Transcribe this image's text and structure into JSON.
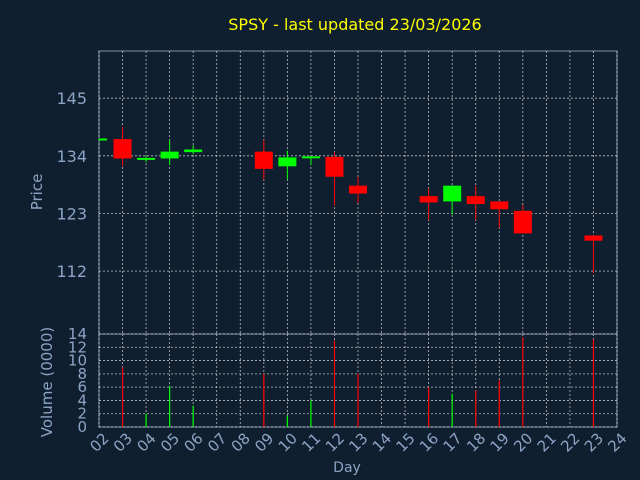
{
  "chart_data": [
    {
      "type": "candlestick",
      "title": "SPSY - last updated 23/03/2026",
      "ylabel": "Price",
      "ylim": [
        100,
        154
      ],
      "yticks": [
        112,
        123,
        134,
        145
      ],
      "grid": true,
      "colors": {
        "background": "#0f1f30",
        "title": "#ffff00",
        "axis_text": "#8ca4c4",
        "up": "#00ff00",
        "down": "#ff0000",
        "grid": "#ffffff"
      },
      "x": [
        "02",
        "03",
        "04",
        "05",
        "06",
        "07",
        "08",
        "09",
        "10",
        "11",
        "12",
        "13",
        "14",
        "15",
        "16",
        "17",
        "18",
        "19",
        "20",
        "21",
        "22",
        "23",
        "24"
      ],
      "candles": [
        {
          "day": "02",
          "open": 137,
          "close": 137.3,
          "high": 137.3,
          "low": 137
        },
        {
          "day": "03",
          "open": 137.2,
          "close": 133.5,
          "high": 139.5,
          "low": 132
        },
        {
          "day": "04",
          "open": 133.3,
          "close": 133.6,
          "high": 134,
          "low": 132.8
        },
        {
          "day": "05",
          "open": 133.5,
          "close": 134.8,
          "high": 137,
          "low": 132.3
        },
        {
          "day": "06",
          "open": 134.7,
          "close": 135.2,
          "high": 136,
          "low": 134.3
        },
        {
          "day": "09",
          "open": 134.8,
          "close": 131.5,
          "high": 137,
          "low": 129.5
        },
        {
          "day": "10",
          "open": 132,
          "close": 133.7,
          "high": 135,
          "low": 129.5
        },
        {
          "day": "11",
          "open": 133.6,
          "close": 133.9,
          "high": 134,
          "low": 132.2
        },
        {
          "day": "12",
          "open": 133.8,
          "close": 130,
          "high": 134.7,
          "low": 124.5
        },
        {
          "day": "13",
          "open": 128.3,
          "close": 126.8,
          "high": 130,
          "low": 125
        },
        {
          "day": "16",
          "open": 126.3,
          "close": 125.1,
          "high": 127.8,
          "low": 121.8
        },
        {
          "day": "17",
          "open": 125.3,
          "close": 128.3,
          "high": 128.3,
          "low": 122.8
        },
        {
          "day": "18",
          "open": 126.3,
          "close": 124.8,
          "high": 128.3,
          "low": 121.8
        },
        {
          "day": "19",
          "open": 125.3,
          "close": 123.8,
          "high": 125,
          "low": 120.3
        },
        {
          "day": "20",
          "open": 123.5,
          "close": 119.2,
          "high": 124.6,
          "low": 119.2
        },
        {
          "day": "23",
          "open": 118.8,
          "close": 117.8,
          "high": 118.8,
          "low": 111.6
        }
      ]
    },
    {
      "type": "bar",
      "xlabel": "Day",
      "ylabel": "Volume (0000)",
      "ylim": [
        0,
        14
      ],
      "yticks": [
        0,
        2,
        4,
        6,
        8,
        10,
        12,
        14
      ],
      "grid": true,
      "categories": [
        "02",
        "03",
        "04",
        "05",
        "06",
        "07",
        "08",
        "09",
        "10",
        "11",
        "12",
        "13",
        "14",
        "15",
        "16",
        "17",
        "18",
        "19",
        "20",
        "21",
        "22",
        "23",
        "24"
      ],
      "bars": [
        {
          "day": "03",
          "value": 9,
          "direction": "down"
        },
        {
          "day": "04",
          "value": 2,
          "direction": "up"
        },
        {
          "day": "05",
          "value": 6.2,
          "direction": "up"
        },
        {
          "day": "06",
          "value": 3.2,
          "direction": "up"
        },
        {
          "day": "09",
          "value": 8,
          "direction": "down"
        },
        {
          "day": "10",
          "value": 1.7,
          "direction": "up"
        },
        {
          "day": "11",
          "value": 4,
          "direction": "up"
        },
        {
          "day": "12",
          "value": 13,
          "direction": "down"
        },
        {
          "day": "13",
          "value": 8,
          "direction": "down"
        },
        {
          "day": "16",
          "value": 6,
          "direction": "down"
        },
        {
          "day": "17",
          "value": 5,
          "direction": "up"
        },
        {
          "day": "18",
          "value": 5.5,
          "direction": "down"
        },
        {
          "day": "19",
          "value": 7,
          "direction": "down"
        },
        {
          "day": "20",
          "value": 13.5,
          "direction": "down"
        },
        {
          "day": "23",
          "value": 13.2,
          "direction": "down"
        }
      ]
    }
  ]
}
